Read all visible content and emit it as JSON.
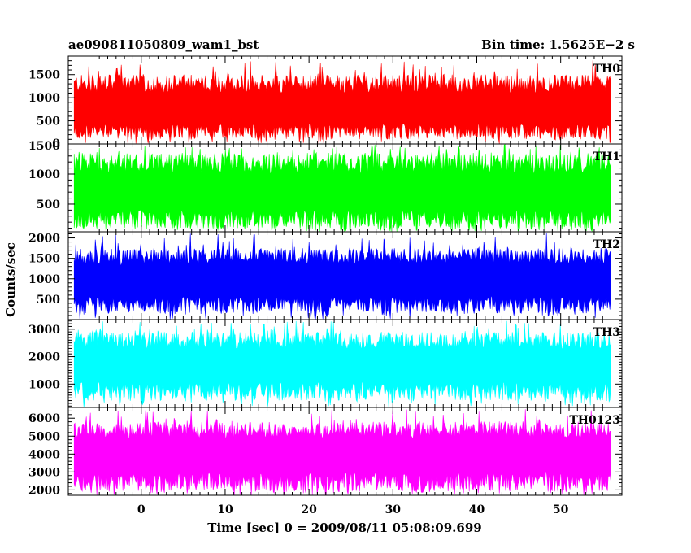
{
  "header": {
    "left_title": "ae090811050809_wam1_bst",
    "right_title": "Bin time: 1.5625E−2 s"
  },
  "chart_data": {
    "type": "line",
    "title": "ae090811050809_wam1_bst",
    "subtitle": "Bin time: 1.5625E−2 s",
    "xlabel": "Time [sec] 0 = 2009/08/11 05:08:09.699",
    "ylabel": "Counts/sec",
    "xlim": [
      -8.7,
      57.3
    ],
    "x_range_of_data": [
      -8.0,
      56.0
    ],
    "bin_time": 0.015625,
    "x_ticks": [
      0,
      10,
      20,
      30,
      40,
      50
    ],
    "grid": false,
    "legend": "none",
    "panels": [
      {
        "name": "TH0",
        "color": "#ff0000",
        "ylim": [
          0,
          1900
        ],
        "y_ticks": [
          500,
          1000,
          1500
        ],
        "y_tick_labels": [
          "500",
          "1000",
          "1500"
        ],
        "bottom_tick_label": "0",
        "baseline": 780,
        "low": 100,
        "high": 1500,
        "peak": 1820
      },
      {
        "name": "TH1",
        "color": "#00ff00",
        "ylim": [
          40,
          1500
        ],
        "y_ticks": [
          500,
          1000
        ],
        "y_tick_labels": [
          "500",
          "1000"
        ],
        "top_tick_label": "1500",
        "baseline": 720,
        "low": 90,
        "high": 1350,
        "peak": 1490
      },
      {
        "name": "TH2",
        "color": "#0000ff",
        "ylim": [
          0,
          2150
        ],
        "y_ticks": [
          500,
          1000,
          1500,
          2000
        ],
        "y_tick_labels": [
          "500",
          "1000",
          "1500",
          "2000"
        ],
        "baseline": 1000,
        "low": 150,
        "high": 1750,
        "peak": 2120
      },
      {
        "name": "TH3",
        "color": "#00ffff",
        "ylim": [
          150,
          3350
        ],
        "y_ticks": [
          1000,
          2000,
          3000
        ],
        "y_tick_labels": [
          "1000",
          "2000",
          "3000"
        ],
        "baseline": 1750,
        "low": 400,
        "high": 2900,
        "peak": 3300
      },
      {
        "name": "TH0123",
        "color": "#ff00ff",
        "ylim": [
          1700,
          6600
        ],
        "y_ticks": [
          2000,
          3000,
          4000,
          5000,
          6000
        ],
        "y_tick_labels": [
          "2000",
          "3000",
          "4000",
          "5000",
          "6000"
        ],
        "baseline": 4100,
        "low": 1900,
        "high": 5800,
        "peak": 6500
      }
    ]
  }
}
